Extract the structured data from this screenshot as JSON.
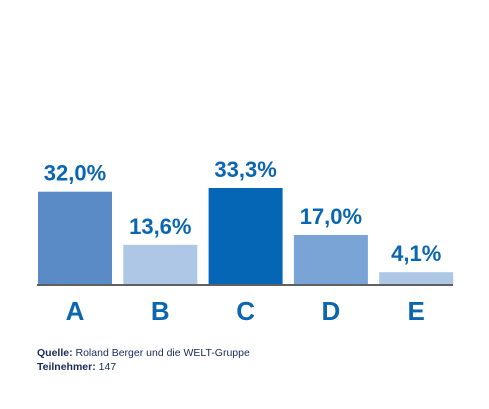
{
  "chart_data": {
    "type": "bar",
    "title": "",
    "xlabel": "",
    "ylabel": "",
    "categories": [
      "A",
      "B",
      "C",
      "D",
      "E"
    ],
    "values": [
      32.0,
      13.6,
      33.3,
      17.0,
      4.1
    ],
    "value_labels": [
      "32,0%",
      "13,6%",
      "33,3%",
      "17,0%",
      "4,1%"
    ],
    "ylim": [
      0,
      33.3
    ],
    "grid": false,
    "legend": "none",
    "bar_colors": [
      "#5a8bc7",
      "#aec7e6",
      "#0566b5",
      "#7aa4d6",
      "#aec7e6"
    ],
    "label_color": "#0a66b0",
    "axis_color": "#000000"
  },
  "footer": {
    "source_label": "Quelle:",
    "source_text": " Roland Berger und die WELT-Gruppe",
    "participants_label": "Teilnehmer:",
    "participants_text": " 147"
  }
}
